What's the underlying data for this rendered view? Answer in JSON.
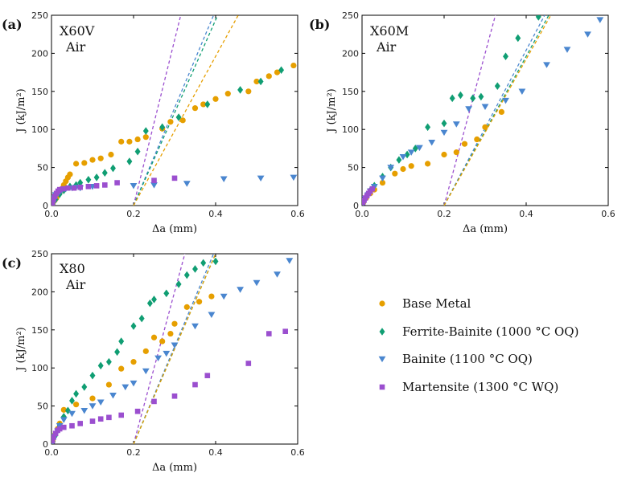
{
  "figure": {
    "legend": [
      {
        "label": "Base Metal",
        "color": "#E69F00",
        "marker": "circle"
      },
      {
        "label": "Ferrite-Bainite (1000 °C OQ)",
        "color": "#109E73",
        "marker": "diamond"
      },
      {
        "label": "Bainite (1100 °C OQ)",
        "color": "#4A86CF",
        "marker": "triangle-down"
      },
      {
        "label": "Martensite (1300 °C WQ)",
        "color": "#9B4FCF",
        "marker": "square"
      }
    ]
  },
  "chart_data": [
    {
      "type": "scatter",
      "panel_label": "(a)",
      "material": "X60V",
      "environment": "Air",
      "xlabel": "Δa (mm)",
      "ylabel": "J (kJ/m²)",
      "xlim": [
        0,
        0.6
      ],
      "ylim": [
        0,
        250
      ],
      "xticks": [
        "0.0",
        "0.2",
        "0.4",
        "0.6"
      ],
      "yticks": [
        "0",
        "50",
        "100",
        "150",
        "200",
        "250"
      ],
      "series": [
        {
          "name": "Base Metal",
          "x": [
            0.003,
            0.008,
            0.012,
            0.016,
            0.02,
            0.025,
            0.03,
            0.035,
            0.04,
            0.045,
            0.06,
            0.08,
            0.1,
            0.12,
            0.145,
            0.17,
            0.19,
            0.21,
            0.23,
            0.27,
            0.29,
            0.32,
            0.35,
            0.37,
            0.4,
            0.43,
            0.48,
            0.5,
            0.53,
            0.55,
            0.59
          ],
          "y": [
            3,
            7,
            10,
            14,
            17,
            22,
            27,
            32,
            37,
            41,
            55,
            56,
            60,
            62,
            67,
            84,
            84,
            87,
            90,
            101,
            110,
            112,
            128,
            133,
            140,
            147,
            150,
            163,
            170,
            175,
            184
          ]
        },
        {
          "name": "Ferrite-Bainite (1000 °C OQ)",
          "x": [
            0.003,
            0.01,
            0.02,
            0.03,
            0.045,
            0.06,
            0.07,
            0.09,
            0.11,
            0.13,
            0.15,
            0.19,
            0.21,
            0.23,
            0.27,
            0.31,
            0.38,
            0.46,
            0.51,
            0.56
          ],
          "y": [
            2,
            8,
            15,
            20,
            25,
            27,
            30,
            34,
            37,
            43,
            49,
            58,
            71,
            98,
            103,
            116,
            133,
            152,
            163,
            178
          ]
        },
        {
          "name": "Bainite (1100 °C OQ)",
          "x": [
            0.002,
            0.006,
            0.01,
            0.015,
            0.02,
            0.025,
            0.035,
            0.05,
            0.06,
            0.07,
            0.1,
            0.2,
            0.25,
            0.33,
            0.42,
            0.51,
            0.59
          ],
          "y": [
            3,
            10,
            14,
            16,
            18,
            20,
            22,
            23,
            24,
            23,
            25,
            26,
            27,
            29,
            35,
            36,
            37
          ]
        },
        {
          "name": "Martensite (1300 °C WQ)",
          "x": [
            0.002,
            0.005,
            0.008,
            0.012,
            0.016,
            0.02,
            0.028,
            0.04,
            0.055,
            0.07,
            0.09,
            0.11,
            0.13,
            0.16,
            0.25,
            0.3
          ],
          "y": [
            3,
            8,
            12,
            16,
            19,
            21,
            22,
            23,
            23,
            24,
            25,
            26,
            27,
            30,
            33,
            36
          ]
        }
      ],
      "construction_lines": [
        {
          "series": "Martensite (1300 °C WQ)",
          "x": [
            0.2,
            0.315
          ],
          "y": [
            0,
            250
          ]
        },
        {
          "series": "Bainite (1100 °C OQ)",
          "x": [
            0.2,
            0.395
          ],
          "y": [
            0,
            250
          ]
        },
        {
          "series": "Ferrite-Bainite (1000 °C OQ)",
          "x": [
            0.2,
            0.405
          ],
          "y": [
            0,
            250
          ]
        },
        {
          "series": "Base Metal",
          "x": [
            0.2,
            0.455
          ],
          "y": [
            0,
            250
          ]
        }
      ]
    },
    {
      "type": "scatter",
      "panel_label": "(b)",
      "material": "X60M",
      "environment": "Air",
      "xlabel": "Δa (mm)",
      "ylabel": "J (kJ/m²)",
      "xlim": [
        0,
        0.6
      ],
      "ylim": [
        0,
        250
      ],
      "xticks": [
        "0.0",
        "0.2",
        "0.4",
        "0.6"
      ],
      "yticks": [
        "0",
        "50",
        "100",
        "150",
        "200",
        "250"
      ],
      "series": [
        {
          "name": "Base Metal",
          "x": [
            0.003,
            0.01,
            0.02,
            0.03,
            0.05,
            0.08,
            0.1,
            0.12,
            0.16,
            0.2,
            0.23,
            0.25,
            0.28,
            0.3,
            0.34
          ],
          "y": [
            4,
            10,
            16,
            21,
            30,
            42,
            48,
            52,
            55,
            67,
            70,
            81,
            87,
            103,
            123
          ]
        },
        {
          "name": "Ferrite-Bainite (1000 °C OQ)",
          "x": [
            0.003,
            0.008,
            0.015,
            0.02,
            0.03,
            0.05,
            0.07,
            0.09,
            0.11,
            0.13,
            0.16,
            0.2,
            0.22,
            0.24,
            0.27,
            0.29,
            0.33,
            0.35,
            0.38,
            0.43
          ],
          "y": [
            4,
            9,
            15,
            20,
            26,
            38,
            50,
            60,
            67,
            75,
            103,
            108,
            141,
            145,
            141,
            143,
            157,
            196,
            220,
            248
          ]
        },
        {
          "name": "Bainite (1100 °C OQ)",
          "x": [
            0.003,
            0.008,
            0.015,
            0.02,
            0.03,
            0.05,
            0.07,
            0.1,
            0.12,
            0.14,
            0.17,
            0.2,
            0.23,
            0.26,
            0.3,
            0.35,
            0.39,
            0.45,
            0.5,
            0.55,
            0.58
          ],
          "y": [
            4,
            9,
            14,
            19,
            25,
            36,
            50,
            64,
            70,
            76,
            83,
            96,
            107,
            127,
            130,
            138,
            150,
            185,
            205,
            225,
            244
          ]
        },
        {
          "name": "Martensite (1300 °C WQ)",
          "x": [
            0.002,
            0.005,
            0.008,
            0.012,
            0.016,
            0.02,
            0.025
          ],
          "y": [
            4,
            7,
            10,
            13,
            16,
            19,
            22
          ]
        }
      ],
      "construction_lines": [
        {
          "series": "Martensite (1300 °C WQ)",
          "x": [
            0.2,
            0.325
          ],
          "y": [
            0,
            250
          ]
        },
        {
          "series": "Bainite (1100 °C OQ)",
          "x": [
            0.2,
            0.445
          ],
          "y": [
            0,
            250
          ]
        },
        {
          "series": "Ferrite-Bainite (1000 °C OQ)",
          "x": [
            0.2,
            0.455
          ],
          "y": [
            0,
            250
          ]
        },
        {
          "series": "Base Metal",
          "x": [
            0.2,
            0.46
          ],
          "y": [
            0,
            250
          ]
        }
      ]
    },
    {
      "type": "scatter",
      "panel_label": "(c)",
      "material": "X80",
      "environment": "Air",
      "xlabel": "Δa (mm)",
      "ylabel": "J (kJ/m²)",
      "xlim": [
        0,
        0.6
      ],
      "ylim": [
        0,
        250
      ],
      "xticks": [
        "0.0",
        "0.2",
        "0.4",
        "0.6"
      ],
      "yticks": [
        "0",
        "50",
        "100",
        "150",
        "200",
        "250"
      ],
      "series": [
        {
          "name": "Base Metal",
          "x": [
            0.003,
            0.008,
            0.015,
            0.02,
            0.03,
            0.06,
            0.1,
            0.14,
            0.17,
            0.2,
            0.23,
            0.25,
            0.27,
            0.29,
            0.3,
            0.33,
            0.36,
            0.39
          ],
          "y": [
            4,
            12,
            20,
            27,
            45,
            52,
            60,
            78,
            99,
            108,
            122,
            140,
            135,
            145,
            158,
            180,
            187,
            194
          ]
        },
        {
          "name": "Ferrite-Bainite (1000 °C OQ)",
          "x": [
            0.003,
            0.008,
            0.015,
            0.02,
            0.03,
            0.04,
            0.05,
            0.06,
            0.08,
            0.1,
            0.12,
            0.14,
            0.16,
            0.17,
            0.2,
            0.22,
            0.24,
            0.25,
            0.28,
            0.31,
            0.33,
            0.35,
            0.37,
            0.4
          ],
          "y": [
            3,
            10,
            18,
            24,
            36,
            44,
            57,
            66,
            75,
            90,
            103,
            108,
            121,
            135,
            155,
            165,
            185,
            190,
            198,
            210,
            222,
            230,
            238,
            240
          ]
        },
        {
          "name": "Bainite (1100 °C OQ)",
          "x": [
            0.003,
            0.008,
            0.015,
            0.02,
            0.03,
            0.05,
            0.08,
            0.1,
            0.12,
            0.15,
            0.18,
            0.2,
            0.23,
            0.26,
            0.28,
            0.3,
            0.35,
            0.39,
            0.42,
            0.46,
            0.5,
            0.55,
            0.58
          ],
          "y": [
            4,
            10,
            17,
            24,
            32,
            40,
            44,
            50,
            55,
            64,
            75,
            80,
            96,
            113,
            119,
            130,
            155,
            170,
            194,
            203,
            212,
            223,
            241
          ]
        },
        {
          "name": "Martensite (1300 °C WQ)",
          "x": [
            0.002,
            0.005,
            0.01,
            0.015,
            0.02,
            0.03,
            0.05,
            0.07,
            0.1,
            0.12,
            0.14,
            0.17,
            0.21,
            0.25,
            0.3,
            0.35,
            0.38,
            0.48,
            0.53,
            0.57
          ],
          "y": [
            4,
            9,
            14,
            18,
            20,
            22,
            24,
            27,
            30,
            33,
            35,
            38,
            43,
            56,
            63,
            78,
            90,
            106,
            145,
            148
          ]
        }
      ],
      "construction_lines": [
        {
          "series": "Martensite (1300 °C WQ)",
          "x": [
            0.2,
            0.325
          ],
          "y": [
            0,
            250
          ]
        },
        {
          "series": "Bainite (1100 °C OQ)",
          "x": [
            0.2,
            0.395
          ],
          "y": [
            0,
            250
          ]
        },
        {
          "series": "Ferrite-Bainite (1000 °C OQ)",
          "x": [
            0.2,
            0.4
          ],
          "y": [
            0,
            250
          ]
        },
        {
          "series": "Base Metal",
          "x": [
            0.2,
            0.4
          ],
          "y": [
            0,
            250
          ]
        }
      ]
    }
  ]
}
